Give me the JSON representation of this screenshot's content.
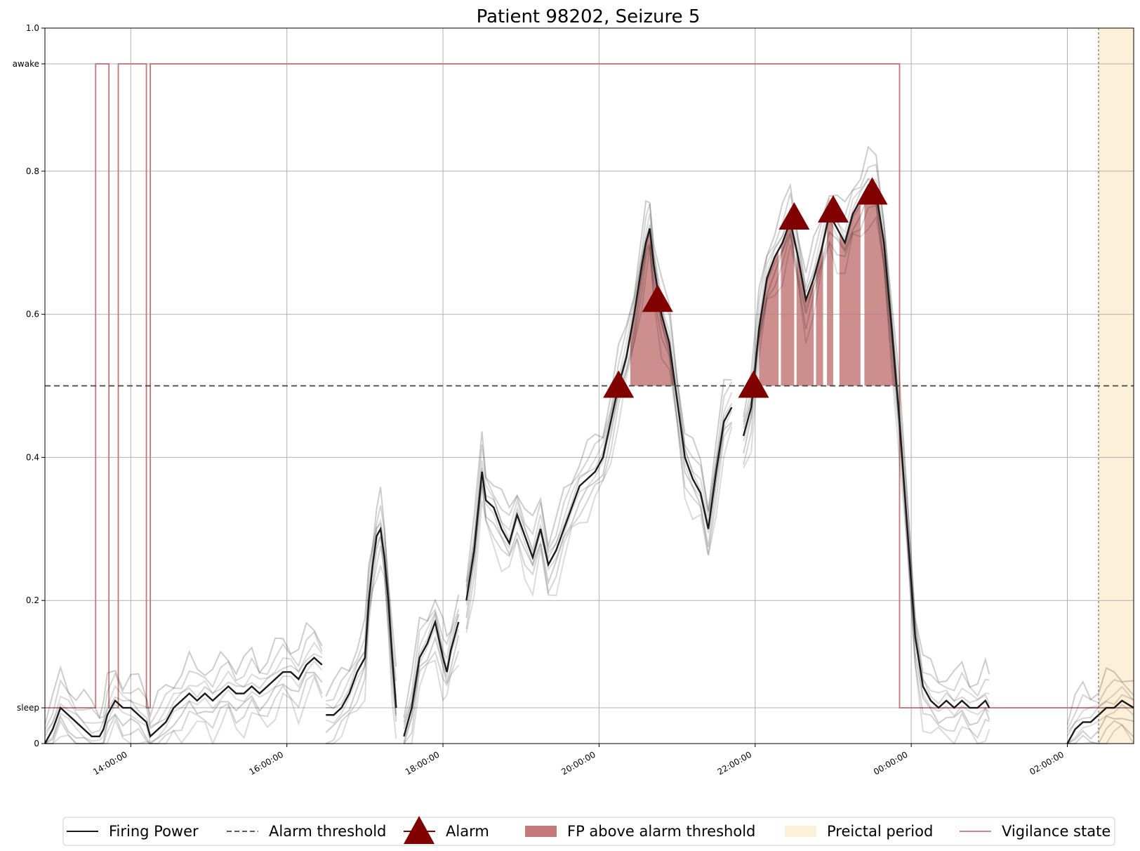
{
  "chart_data": {
    "type": "line",
    "title": "Patient 98202, Seizure 5",
    "xlabel": "",
    "ylabel": "",
    "x_unit": "hours since 00:00 of first day",
    "xlim": [
      12.9,
      26.85
    ],
    "ylim": [
      0,
      1.0
    ],
    "grid": true,
    "legend_position": "bottom",
    "x_ticks": [
      {
        "value": 14,
        "label": "14:00:00"
      },
      {
        "value": 16,
        "label": "16:00:00"
      },
      {
        "value": 18,
        "label": "18:00:00"
      },
      {
        "value": 20,
        "label": "20:00:00"
      },
      {
        "value": 22,
        "label": "22:00:00"
      },
      {
        "value": 24,
        "label": "00:00:00"
      },
      {
        "value": 26,
        "label": "02:00:00"
      }
    ],
    "y_ticks": [
      {
        "value": 0,
        "label": "0"
      },
      {
        "value": 0.05,
        "label": "sleep"
      },
      {
        "value": 0.2,
        "label": "0.2"
      },
      {
        "value": 0.4,
        "label": "0.4"
      },
      {
        "value": 0.6,
        "label": "0.6"
      },
      {
        "value": 0.8,
        "label": "0.8"
      },
      {
        "value": 0.95,
        "label": "awake"
      },
      {
        "value": 1.0,
        "label": "1.0"
      }
    ],
    "alarm_threshold": 0.5,
    "preictal_period": [
      26.4,
      26.85
    ],
    "seizure_onset": 26.4,
    "colors": {
      "firing_power": "#1a1a1a",
      "threshold": "#444444",
      "alarm": "#800000",
      "fp_fill": "#c47a7a",
      "preictal": "#fdf0d8",
      "vigilance": "#c07878",
      "grid": "#b0b0b0"
    },
    "firing_power": {
      "name": "Firing Power",
      "segments": [
        [
          [
            12.9,
            0.0
          ],
          [
            13.0,
            0.02
          ],
          [
            13.1,
            0.05
          ],
          [
            13.2,
            0.04
          ],
          [
            13.3,
            0.03
          ],
          [
            13.4,
            0.02
          ],
          [
            13.5,
            0.01
          ],
          [
            13.6,
            0.01
          ],
          [
            13.65,
            0.02
          ],
          [
            13.7,
            0.04
          ],
          [
            13.8,
            0.06
          ],
          [
            13.9,
            0.05
          ],
          [
            14.0,
            0.05
          ],
          [
            14.1,
            0.04
          ],
          [
            14.2,
            0.03
          ],
          [
            14.25,
            0.01
          ],
          [
            14.35,
            0.02
          ],
          [
            14.45,
            0.03
          ],
          [
            14.55,
            0.05
          ],
          [
            14.65,
            0.06
          ],
          [
            14.75,
            0.07
          ],
          [
            14.85,
            0.06
          ],
          [
            14.95,
            0.07
          ],
          [
            15.05,
            0.06
          ],
          [
            15.15,
            0.07
          ],
          [
            15.25,
            0.08
          ],
          [
            15.35,
            0.07
          ],
          [
            15.45,
            0.07
          ],
          [
            15.55,
            0.08
          ],
          [
            15.65,
            0.07
          ],
          [
            15.75,
            0.08
          ],
          [
            15.85,
            0.09
          ],
          [
            15.95,
            0.1
          ],
          [
            16.05,
            0.1
          ],
          [
            16.15,
            0.09
          ],
          [
            16.25,
            0.11
          ],
          [
            16.35,
            0.12
          ],
          [
            16.45,
            0.11
          ]
        ],
        [
          [
            16.5,
            0.04
          ],
          [
            16.6,
            0.04
          ],
          [
            16.7,
            0.05
          ],
          [
            16.8,
            0.07
          ],
          [
            16.9,
            0.1
          ],
          [
            17.0,
            0.12
          ],
          [
            17.05,
            0.2
          ],
          [
            17.1,
            0.25
          ],
          [
            17.15,
            0.29
          ],
          [
            17.2,
            0.3
          ],
          [
            17.25,
            0.26
          ],
          [
            17.3,
            0.2
          ],
          [
            17.35,
            0.12
          ],
          [
            17.4,
            0.05
          ]
        ],
        [
          [
            17.5,
            0.01
          ],
          [
            17.6,
            0.05
          ],
          [
            17.7,
            0.12
          ],
          [
            17.8,
            0.14
          ],
          [
            17.9,
            0.17
          ],
          [
            18.0,
            0.12
          ],
          [
            18.05,
            0.1
          ],
          [
            18.1,
            0.13
          ],
          [
            18.2,
            0.17
          ]
        ],
        [
          [
            18.3,
            0.2
          ],
          [
            18.4,
            0.27
          ],
          [
            18.5,
            0.38
          ],
          [
            18.55,
            0.34
          ],
          [
            18.65,
            0.33
          ],
          [
            18.75,
            0.3
          ],
          [
            18.85,
            0.28
          ],
          [
            18.95,
            0.32
          ],
          [
            19.05,
            0.29
          ],
          [
            19.15,
            0.26
          ],
          [
            19.25,
            0.3
          ],
          [
            19.35,
            0.25
          ],
          [
            19.45,
            0.27
          ],
          [
            19.55,
            0.3
          ],
          [
            19.65,
            0.33
          ],
          [
            19.75,
            0.36
          ],
          [
            19.85,
            0.37
          ],
          [
            19.95,
            0.38
          ],
          [
            20.05,
            0.4
          ],
          [
            20.15,
            0.45
          ],
          [
            20.25,
            0.5
          ],
          [
            20.35,
            0.54
          ],
          [
            20.45,
            0.6
          ],
          [
            20.55,
            0.67
          ],
          [
            20.6,
            0.7
          ],
          [
            20.65,
            0.72
          ],
          [
            20.7,
            0.67
          ],
          [
            20.8,
            0.6
          ],
          [
            20.9,
            0.56
          ],
          [
            21.0,
            0.48
          ],
          [
            21.1,
            0.4
          ],
          [
            21.2,
            0.37
          ],
          [
            21.3,
            0.35
          ],
          [
            21.4,
            0.3
          ],
          [
            21.5,
            0.38
          ],
          [
            21.6,
            0.45
          ],
          [
            21.7,
            0.47
          ]
        ],
        [
          [
            21.85,
            0.43
          ],
          [
            21.95,
            0.47
          ],
          [
            22.05,
            0.58
          ],
          [
            22.15,
            0.65
          ],
          [
            22.25,
            0.68
          ],
          [
            22.35,
            0.7
          ],
          [
            22.45,
            0.73
          ],
          [
            22.55,
            0.68
          ],
          [
            22.65,
            0.62
          ],
          [
            22.75,
            0.65
          ],
          [
            22.85,
            0.69
          ],
          [
            22.95,
            0.74
          ],
          [
            23.05,
            0.72
          ],
          [
            23.15,
            0.7
          ],
          [
            23.25,
            0.74
          ],
          [
            23.35,
            0.76
          ],
          [
            23.45,
            0.78
          ],
          [
            23.55,
            0.77
          ],
          [
            23.65,
            0.7
          ],
          [
            23.75,
            0.58
          ],
          [
            23.85,
            0.45
          ],
          [
            23.95,
            0.3
          ],
          [
            24.05,
            0.15
          ],
          [
            24.15,
            0.08
          ],
          [
            24.25,
            0.06
          ],
          [
            24.35,
            0.05
          ],
          [
            24.45,
            0.06
          ],
          [
            24.55,
            0.05
          ],
          [
            24.65,
            0.06
          ],
          [
            24.75,
            0.05
          ],
          [
            24.85,
            0.05
          ],
          [
            24.95,
            0.06
          ],
          [
            25.0,
            0.05
          ]
        ],
        [
          [
            26.0,
            0.0
          ],
          [
            26.1,
            0.02
          ],
          [
            26.2,
            0.03
          ],
          [
            26.3,
            0.03
          ],
          [
            26.4,
            0.04
          ],
          [
            26.5,
            0.05
          ],
          [
            26.6,
            0.05
          ],
          [
            26.7,
            0.06
          ],
          [
            26.85,
            0.05
          ]
        ]
      ]
    },
    "vigilance_state": {
      "name": "Vigilance state",
      "awake_value": 0.95,
      "sleep_value": 0.05,
      "steps": [
        [
          12.9,
          "sleep"
        ],
        [
          13.55,
          "awake"
        ],
        [
          13.72,
          "sleep"
        ],
        [
          13.84,
          "awake"
        ],
        [
          14.2,
          "sleep"
        ],
        [
          14.25,
          "awake"
        ],
        [
          23.85,
          "sleep"
        ],
        [
          26.85,
          "sleep"
        ]
      ]
    },
    "fp_above_threshold": [
      {
        "start": 20.4,
        "end": 21.0
      },
      {
        "start": 22.05,
        "end": 22.3
      },
      {
        "start": 22.33,
        "end": 22.5
      },
      {
        "start": 22.53,
        "end": 22.75
      },
      {
        "start": 22.78,
        "end": 22.87
      },
      {
        "start": 22.92,
        "end": 23.0
      },
      {
        "start": 23.08,
        "end": 23.35
      },
      {
        "start": 23.4,
        "end": 23.8
      }
    ],
    "alarms": [
      {
        "x": 20.25,
        "y": 0.5
      },
      {
        "x": 20.75,
        "y": 0.62
      },
      {
        "x": 21.98,
        "y": 0.5
      },
      {
        "x": 22.5,
        "y": 0.735
      },
      {
        "x": 23.0,
        "y": 0.745
      },
      {
        "x": 23.5,
        "y": 0.77
      }
    ],
    "legend": [
      {
        "label": "Firing Power",
        "kind": "solid-line"
      },
      {
        "label": "Alarm threshold",
        "kind": "dashed-line"
      },
      {
        "label": "Alarm",
        "kind": "triangle"
      },
      {
        "label": "FP above alarm threshold",
        "kind": "fill"
      },
      {
        "label": "Preictal period",
        "kind": "preictal"
      },
      {
        "label": "Vigilance state",
        "kind": "vigilance"
      }
    ]
  }
}
